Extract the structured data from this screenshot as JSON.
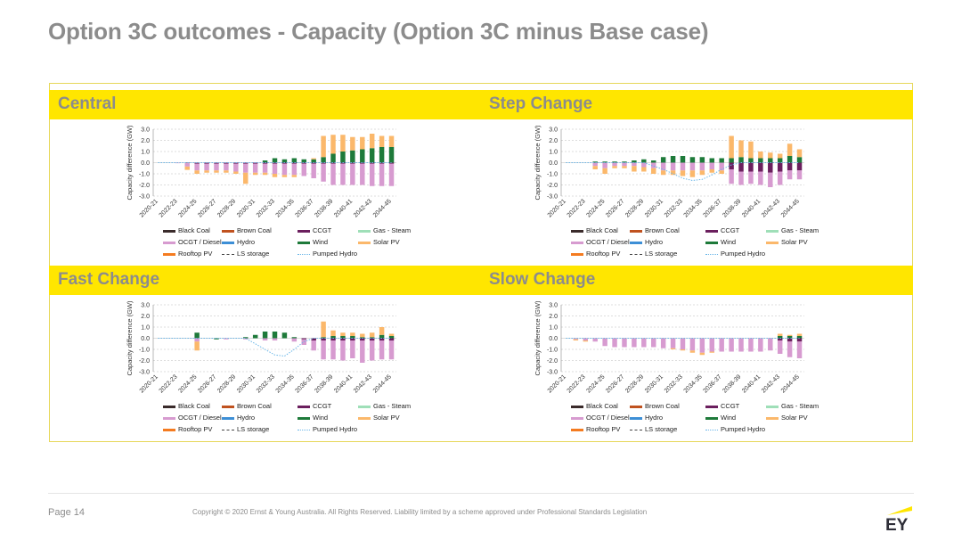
{
  "title": "Option 3C outcomes - Capacity (Option 3C minus Base case)",
  "footer": {
    "page": "Page 14",
    "copyright": "Copyright © 2020 Ernst & Young Australia. All Rights Reserved. Liability limited by a scheme approved under Professional Standards Legislation",
    "logo_text": "EY"
  },
  "colors": {
    "band": "#ffe600",
    "Black Coal": "#3a2b2b",
    "Brown Coal": "#c0521f",
    "CCGT": "#6b1f5e",
    "Gas - Steam": "#9fdfb8",
    "OCGT / Diesel": "#d79bd0",
    "Hydro": "#3d8fd6",
    "Wind": "#1e7a3a",
    "Solar PV": "#fbb86b",
    "Rooftop PV": "#f47b20",
    "LS storage": "#444444",
    "Pumped Hydro": "#6bb7e8"
  },
  "chart_data": [
    {
      "type": "bar",
      "panel": "Central",
      "ylabel": "Capacity difference (GW)",
      "ylim": [
        -3,
        3
      ],
      "yticks": [
        "3.0",
        "2.0",
        "1.0",
        "0.0",
        "-1.0",
        "-2.0",
        "-3.0"
      ],
      "categories": [
        "2020-21",
        "2021-22",
        "2022-23",
        "2023-24",
        "2024-25",
        "2025-26",
        "2026-27",
        "2027-28",
        "2028-29",
        "2029-30",
        "2030-31",
        "2031-32",
        "2032-33",
        "2033-34",
        "2034-35",
        "2035-36",
        "2036-37",
        "2037-38",
        "2038-39",
        "2039-40",
        "2040-41",
        "2041-42",
        "2042-43",
        "2043-44",
        "2044-45"
      ],
      "xticks": [
        "2020-21",
        "2022-23",
        "2024-25",
        "2026-27",
        "2028-29",
        "2030-31",
        "2032-33",
        "2034-35",
        "2036-37",
        "2038-39",
        "2040-41",
        "2042-43",
        "2044-45"
      ],
      "legend": [
        "Black Coal",
        "Brown Coal",
        "CCGT",
        "Gas - Steam",
        "OCGT / Diesel",
        "Hydro",
        "Wind",
        "Solar PV",
        "Rooftop PV",
        "LS storage",
        "Pumped Hydro"
      ],
      "series": [
        {
          "name": "CCGT",
          "values": [
            0,
            0,
            0,
            -0.05,
            -0.1,
            -0.1,
            -0.1,
            -0.1,
            -0.1,
            -0.1,
            -0.1,
            -0.1,
            -0.1,
            -0.1,
            -0.1,
            -0.1,
            -0.1,
            -0.1,
            -0.1,
            -0.1,
            -0.1,
            -0.1,
            -0.1,
            -0.1,
            -0.1
          ]
        },
        {
          "name": "OCGT / Diesel",
          "values": [
            0,
            0,
            -0.05,
            -0.3,
            -0.6,
            -0.6,
            -0.6,
            -0.6,
            -0.7,
            -0.8,
            -0.8,
            -0.8,
            -0.9,
            -1.0,
            -1.0,
            -1.1,
            -1.3,
            -1.6,
            -1.9,
            -1.9,
            -1.9,
            -1.9,
            -2.0,
            -2.0,
            -2.0
          ]
        },
        {
          "name": "Wind",
          "values": [
            0,
            0,
            0,
            0,
            0,
            0,
            0,
            0,
            0,
            0,
            0,
            0.2,
            0.4,
            0.3,
            0.4,
            0.3,
            0.3,
            0.5,
            0.8,
            1.0,
            1.1,
            1.2,
            1.3,
            1.4,
            1.4
          ]
        },
        {
          "name": "Solar PV",
          "values": [
            0,
            0,
            0,
            -0.3,
            -0.3,
            -0.2,
            -0.2,
            -0.2,
            -0.2,
            -1.0,
            -0.2,
            -0.2,
            -0.3,
            -0.2,
            -0.2,
            0,
            0.1,
            1.9,
            1.7,
            1.5,
            1.2,
            1.1,
            1.3,
            1.0,
            1.0
          ]
        },
        {
          "name": "Pumped Hydro",
          "values": [
            0,
            0,
            0,
            0,
            0,
            0,
            0,
            0,
            0,
            0,
            0,
            0,
            0,
            0,
            0,
            0,
            0,
            0,
            0,
            0,
            0,
            0,
            0,
            0,
            0
          ]
        }
      ]
    },
    {
      "type": "bar",
      "panel": "Step Change",
      "ylabel": "Capacity difference (GW)",
      "ylim": [
        -3,
        3
      ],
      "yticks": [
        "3.0",
        "2.0",
        "1.0",
        "0.0",
        "-1.0",
        "-2.0",
        "-3.0"
      ],
      "categories": [
        "2020-21",
        "2021-22",
        "2022-23",
        "2023-24",
        "2024-25",
        "2025-26",
        "2026-27",
        "2027-28",
        "2028-29",
        "2029-30",
        "2030-31",
        "2031-32",
        "2032-33",
        "2033-34",
        "2034-35",
        "2035-36",
        "2036-37",
        "2037-38",
        "2038-39",
        "2039-40",
        "2040-41",
        "2041-42",
        "2042-43",
        "2043-44",
        "2044-45"
      ],
      "xticks": [
        "2020-21",
        "2022-23",
        "2024-25",
        "2026-27",
        "2028-29",
        "2030-31",
        "2032-33",
        "2034-35",
        "2036-37",
        "2038-39",
        "2040-41",
        "2042-43",
        "2044-45"
      ],
      "legend": [
        "Black Coal",
        "Brown Coal",
        "CCGT",
        "Gas - Steam",
        "OCGT / Diesel",
        "Hydro",
        "Wind",
        "Solar PV",
        "Rooftop PV",
        "LS storage",
        "Pumped Hydro"
      ],
      "series": [
        {
          "name": "CCGT",
          "values": [
            0,
            0,
            0,
            0,
            0,
            0,
            0,
            0,
            0,
            0,
            0,
            0,
            0,
            0,
            0,
            0,
            0,
            -0.6,
            -0.8,
            -0.8,
            -0.8,
            -0.9,
            -0.8,
            -0.7,
            -0.7
          ]
        },
        {
          "name": "OCGT / Diesel",
          "values": [
            0,
            0,
            0,
            -0.3,
            -0.5,
            -0.3,
            -0.3,
            -0.3,
            -0.4,
            -0.5,
            -0.7,
            -0.7,
            -0.7,
            -0.7,
            -0.7,
            -0.6,
            -0.7,
            -1.3,
            -1.2,
            -1.1,
            -1.2,
            -1.3,
            -1.2,
            -0.8,
            -0.8
          ]
        },
        {
          "name": "Wind",
          "values": [
            0,
            0,
            0,
            0.1,
            0.1,
            0.1,
            0.1,
            0.2,
            0.3,
            0.2,
            0.5,
            0.6,
            0.6,
            0.5,
            0.5,
            0.4,
            0.4,
            0.4,
            0.5,
            0.4,
            0.4,
            0.4,
            0.4,
            0.6,
            0.5
          ]
        },
        {
          "name": "Solar PV",
          "values": [
            0,
            0,
            0,
            -0.3,
            -0.5,
            -0.2,
            -0.2,
            -0.5,
            -0.4,
            -0.5,
            -0.4,
            -0.4,
            -0.5,
            -0.6,
            -0.4,
            -0.3,
            -0.3,
            2.0,
            1.5,
            1.5,
            0.6,
            0.5,
            0.4,
            1.1,
            0.7
          ]
        },
        {
          "name": "Pumped Hydro",
          "values": [
            0,
            0,
            0,
            0,
            0,
            0,
            0,
            0,
            0,
            -0.3,
            -0.6,
            -1.0,
            -1.4,
            -1.6,
            -1.5,
            -1.1,
            -0.6,
            -0.2,
            0,
            0,
            0,
            0,
            0,
            0,
            0
          ]
        }
      ]
    },
    {
      "type": "bar",
      "panel": "Fast Change",
      "ylabel": "Capacity difference (GW)",
      "ylim": [
        -3,
        3
      ],
      "yticks": [
        "3.0",
        "2.0",
        "1.0",
        "0.0",
        "-1.0",
        "-2.0",
        "-3.0"
      ],
      "categories": [
        "2020-21",
        "2021-22",
        "2022-23",
        "2023-24",
        "2024-25",
        "2025-26",
        "2026-27",
        "2027-28",
        "2028-29",
        "2029-30",
        "2030-31",
        "2031-32",
        "2032-33",
        "2033-34",
        "2034-35",
        "2035-36",
        "2036-37",
        "2037-38",
        "2038-39",
        "2039-40",
        "2040-41",
        "2041-42",
        "2042-43",
        "2043-44",
        "2044-45"
      ],
      "xticks": [
        "2020-21",
        "2022-23",
        "2024-25",
        "2026-27",
        "2028-29",
        "2030-31",
        "2032-33",
        "2034-35",
        "2036-37",
        "2038-39",
        "2040-41",
        "2042-43",
        "2044-45"
      ],
      "legend": [
        "Black Coal",
        "Brown Coal",
        "CCGT",
        "Gas - Steam",
        "OCGT / Diesel",
        "Hydro",
        "Wind",
        "Solar PV",
        "Rooftop PV",
        "LS storage",
        "Pumped Hydro"
      ],
      "series": [
        {
          "name": "CCGT",
          "values": [
            0,
            0,
            0,
            0,
            0,
            0,
            0,
            0,
            0,
            0,
            0,
            0,
            0,
            0,
            0,
            -0.1,
            -0.2,
            -0.2,
            -0.2,
            -0.2,
            -0.2,
            -0.2,
            -0.2,
            -0.2,
            -0.2
          ]
        },
        {
          "name": "OCGT / Diesel",
          "values": [
            0,
            0,
            0,
            0,
            -0.3,
            0,
            0,
            -0.1,
            0,
            -0.1,
            0,
            -0.2,
            -0.2,
            0,
            -0.3,
            -0.5,
            -0.9,
            -1.7,
            -1.7,
            -1.8,
            -1.6,
            -2.0,
            -1.8,
            -1.7,
            -1.7
          ]
        },
        {
          "name": "Wind",
          "values": [
            0,
            0,
            0,
            0,
            0.5,
            0,
            -0.1,
            0,
            0,
            0.1,
            0.3,
            0.6,
            0.6,
            0.5,
            0.1,
            0,
            0,
            0.1,
            0.2,
            0.2,
            0.2,
            0.1,
            0.1,
            0.3,
            0.2
          ]
        },
        {
          "name": "Solar PV",
          "values": [
            0,
            0,
            0,
            0,
            -0.8,
            0,
            0,
            0,
            0,
            0,
            0,
            0,
            0,
            0,
            0,
            0,
            0,
            1.4,
            0.5,
            0.3,
            0.3,
            0.3,
            0.4,
            0.7,
            0.2
          ]
        },
        {
          "name": "Pumped Hydro",
          "values": [
            0,
            0,
            0,
            0,
            0,
            0,
            0,
            0,
            0,
            0,
            -0.5,
            -1.0,
            -1.5,
            -1.6,
            -1.0,
            -0.3,
            0,
            0,
            0,
            0,
            0,
            0,
            0,
            0,
            0
          ]
        }
      ]
    },
    {
      "type": "bar",
      "panel": "Slow Change",
      "ylabel": "Capacity difference (GW)",
      "ylim": [
        -3,
        3
      ],
      "yticks": [
        "3.0",
        "2.0",
        "1.0",
        "0.0",
        "-1.0",
        "-2.0",
        "-3.0"
      ],
      "categories": [
        "2020-21",
        "2021-22",
        "2022-23",
        "2023-24",
        "2024-25",
        "2025-26",
        "2026-27",
        "2027-28",
        "2028-29",
        "2029-30",
        "2030-31",
        "2031-32",
        "2032-33",
        "2033-34",
        "2034-35",
        "2035-36",
        "2036-37",
        "2037-38",
        "2038-39",
        "2039-40",
        "2040-41",
        "2041-42",
        "2042-43",
        "2043-44",
        "2044-45"
      ],
      "xticks": [
        "2020-21",
        "2022-23",
        "2024-25",
        "2026-27",
        "2028-29",
        "2030-31",
        "2032-33",
        "2034-35",
        "2036-37",
        "2038-39",
        "2040-41",
        "2042-43",
        "2044-45"
      ],
      "legend": [
        "Black Coal",
        "Brown Coal",
        "CCGT",
        "Gas - Steam",
        "OCGT / Diesel",
        "Hydro",
        "Wind",
        "Solar PV",
        "Rooftop PV",
        "LS storage",
        "Pumped Hydro"
      ],
      "series": [
        {
          "name": "CCGT",
          "values": [
            0,
            0,
            0,
            0,
            0,
            0,
            0,
            0,
            0,
            0,
            0,
            0,
            0,
            0,
            0,
            0,
            0,
            0,
            0,
            0,
            0,
            0,
            -0.2,
            -0.3,
            -0.3
          ]
        },
        {
          "name": "OCGT / Diesel",
          "values": [
            0,
            -0.1,
            -0.2,
            -0.3,
            -0.7,
            -0.8,
            -0.8,
            -0.8,
            -0.8,
            -0.8,
            -0.9,
            -0.9,
            -1.0,
            -1.1,
            -1.3,
            -1.2,
            -1.2,
            -1.2,
            -1.2,
            -1.2,
            -1.2,
            -1.1,
            -1.2,
            -1.4,
            -1.5
          ]
        },
        {
          "name": "Wind",
          "values": [
            0,
            0,
            0,
            0,
            0,
            0,
            0,
            0,
            0,
            0,
            0,
            0,
            0,
            0,
            0,
            0,
            0,
            0,
            0,
            0,
            0,
            0,
            0.2,
            0.2,
            0.2
          ]
        },
        {
          "name": "Solar PV",
          "values": [
            0,
            -0.1,
            -0.1,
            0,
            0,
            0,
            0,
            0,
            0,
            0,
            0,
            -0.1,
            -0.1,
            -0.2,
            -0.2,
            -0.1,
            0,
            0,
            0,
            0,
            0,
            0,
            0.2,
            0.1,
            0.2
          ]
        },
        {
          "name": "Pumped Hydro",
          "values": [
            0,
            0,
            0,
            0,
            0,
            0,
            0,
            0,
            0,
            0,
            0,
            0,
            0,
            0,
            0,
            0,
            0,
            0,
            0,
            0,
            0,
            0,
            0,
            0,
            0
          ]
        }
      ]
    }
  ]
}
